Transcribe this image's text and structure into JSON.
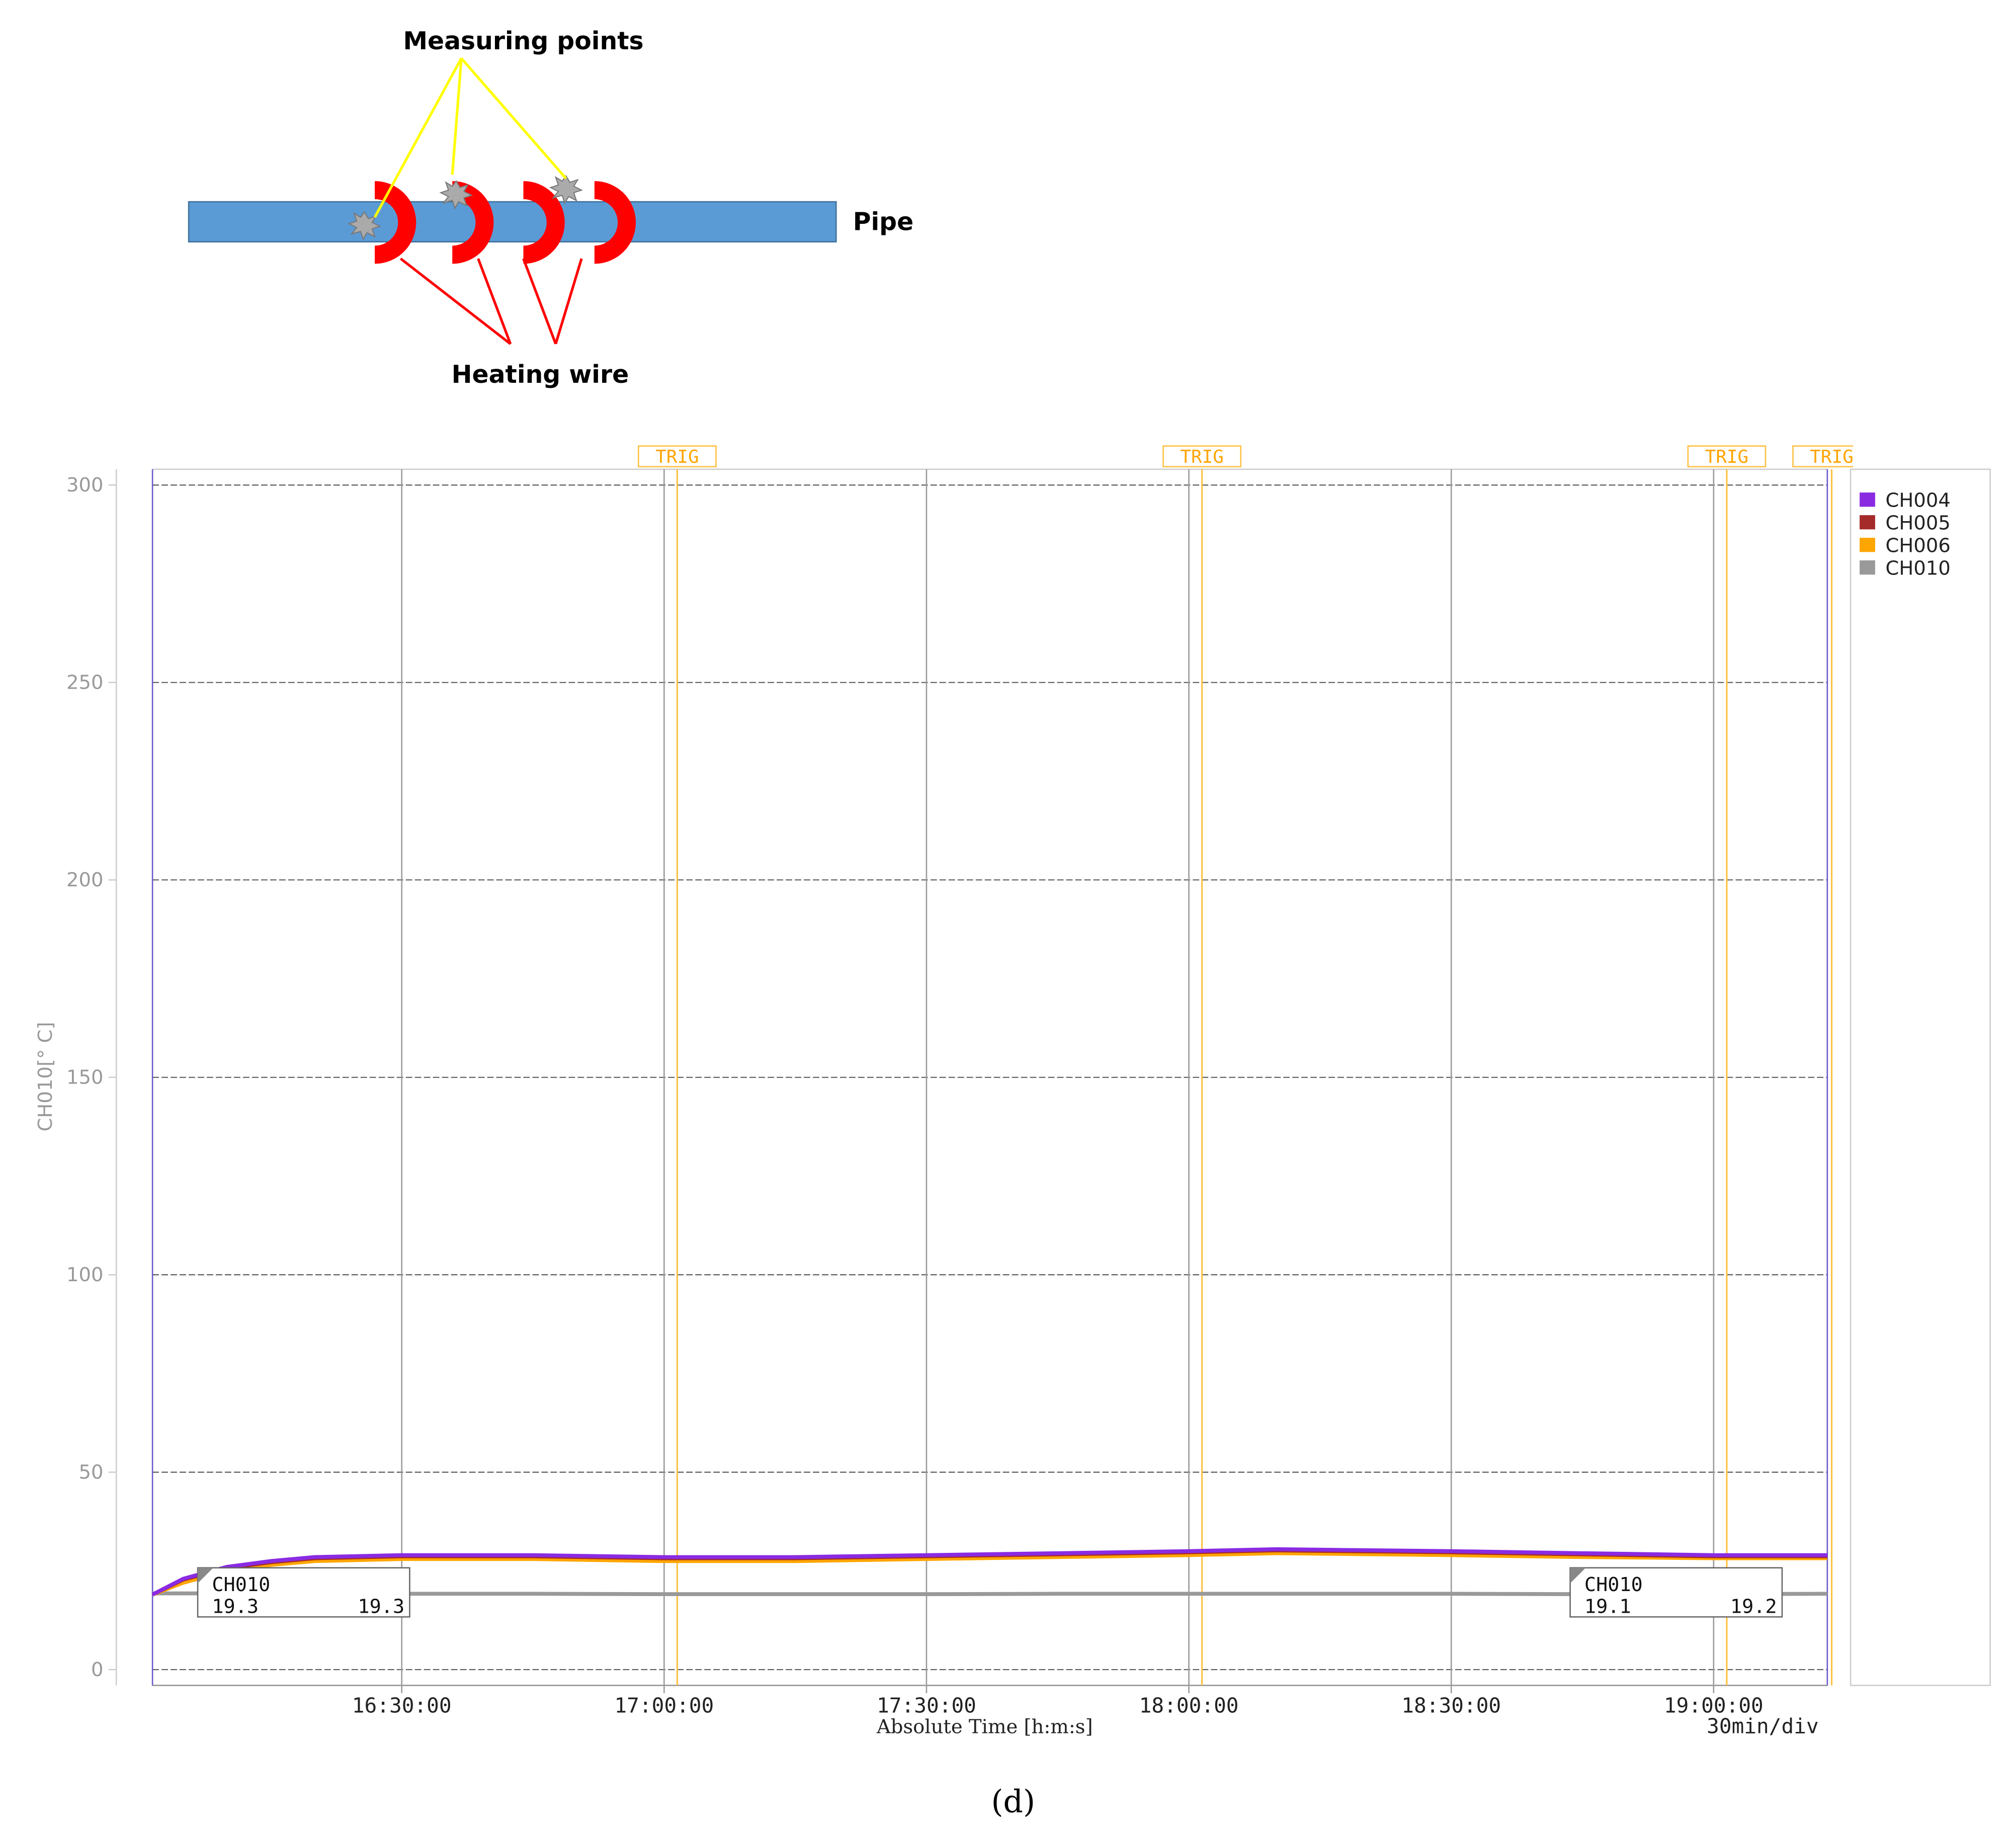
{
  "diagram": {
    "labels": {
      "measuring": "Measuring points",
      "pipe": "Pipe",
      "heating": "Heating wire"
    }
  },
  "caption": "(d)",
  "chart_data": {
    "type": "line",
    "ylabel": "CH010[° C]",
    "xlabel": "Absolute Time [h:m:s]",
    "scale_note": "30min/div",
    "x": [
      "16:01:30",
      "16:05:00",
      "16:10:00",
      "16:15:00",
      "16:20:00",
      "16:30:00",
      "16:45:00",
      "17:00:00",
      "17:15:00",
      "17:30:00",
      "17:45:00",
      "18:00:00",
      "18:10:00",
      "18:30:00",
      "18:45:00",
      "19:00:00",
      "19:13:00"
    ],
    "series": [
      {
        "name": "CH004",
        "color": "#8a2be2",
        "values": [
          19,
          23,
          26,
          27.5,
          28.5,
          29,
          29,
          28.5,
          28.5,
          29,
          29.5,
          30,
          30.5,
          30,
          29.5,
          29,
          29
        ]
      },
      {
        "name": "CH005",
        "color": "#a52a2a",
        "values": [
          19,
          22.8,
          25.7,
          27.2,
          28.2,
          28.7,
          28.7,
          28.2,
          28.2,
          28.7,
          29.2,
          29.7,
          30.2,
          29.7,
          29.2,
          28.7,
          28.7
        ]
      },
      {
        "name": "CH006",
        "color": "#ffa500",
        "values": [
          19,
          22,
          25,
          26.5,
          27.5,
          28,
          28,
          27.5,
          27.5,
          28,
          28.5,
          29,
          29.5,
          29,
          28.5,
          28.2,
          28.2
        ]
      },
      {
        "name": "CH010",
        "color": "#999999",
        "values": [
          19.3,
          19.3,
          19.3,
          19.2,
          19.2,
          19.2,
          19.2,
          19.1,
          19.1,
          19.1,
          19.2,
          19.2,
          19.2,
          19.2,
          19.1,
          19.1,
          19.2
        ]
      }
    ],
    "xlim": [
      "16:01:30",
      "19:13:00"
    ],
    "xticks": [
      "16:30:00",
      "17:00:00",
      "17:30:00",
      "18:00:00",
      "18:30:00",
      "19:00:00"
    ],
    "ylim": [
      -4,
      304
    ],
    "yticks": [
      0,
      50,
      100,
      150,
      200,
      250,
      300
    ],
    "grid": true,
    "triggers": [
      {
        "x": "17:01:30",
        "label": "TRIG"
      },
      {
        "x": "18:01:30",
        "label": "TRIG"
      },
      {
        "x": "19:01:30",
        "label": "TRIG"
      },
      {
        "x": "19:13:30",
        "label": "TRIG"
      }
    ],
    "cursors": [
      {
        "name": "CH010",
        "values": [
          19.3,
          19.3
        ]
      },
      {
        "name": "CH010",
        "values": [
          19.1,
          19.2
        ]
      }
    ]
  }
}
